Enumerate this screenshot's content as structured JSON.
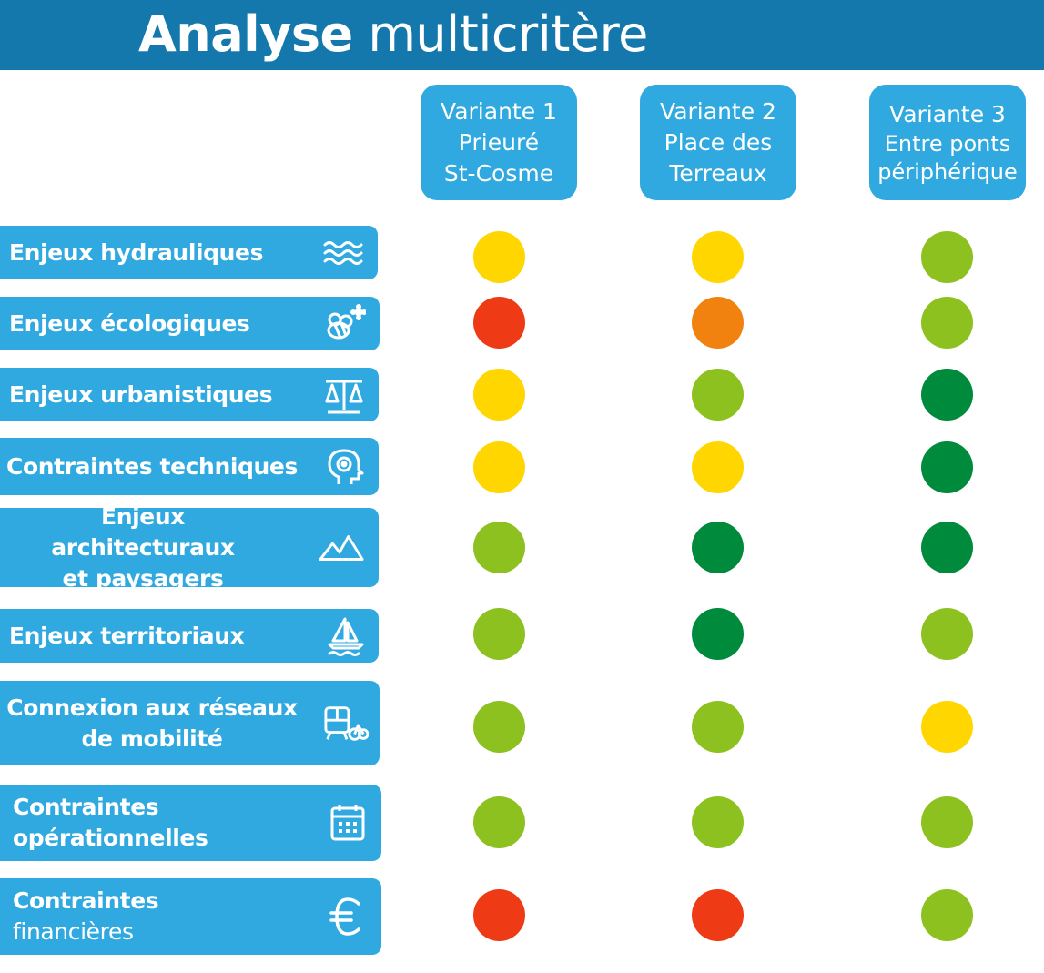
{
  "title": {
    "bold": "Analyse",
    "light": "multicritère"
  },
  "variants": [
    {
      "line1": "Variante 1",
      "line2": "Prieuré",
      "line3": "St-Cosme"
    },
    {
      "line1": "Variante 2",
      "line2": "Place des",
      "line3": "Terreaux"
    },
    {
      "line1": "Variante 3",
      "line2": "Entre ponts",
      "line3": "périphérique"
    }
  ],
  "criteria": [
    {
      "line1": "Enjeux hydrauliques",
      "line2": "",
      "icon": "waves-icon"
    },
    {
      "line1": "Enjeux écologiques",
      "line2": "",
      "icon": "bee-flower-icon"
    },
    {
      "line1": "Enjeux urbanistiques",
      "line2": "",
      "icon": "scales-icon"
    },
    {
      "line1": "Contraintes techniques",
      "line2": "",
      "icon": "head-gear-icon"
    },
    {
      "line1": "Enjeux architecturaux",
      "line2": "et paysagers",
      "icon": "mountains-icon"
    },
    {
      "line1": "Enjeux territoriaux",
      "line2": "",
      "icon": "sailboat-icon"
    },
    {
      "line1": "Connexion aux réseaux",
      "line2": "de mobilité",
      "icon": "tram-bike-icon"
    },
    {
      "line1": "Contraintes",
      "line2": "opérationnelles",
      "icon": "calendar-icon"
    },
    {
      "line1": "Contraintes",
      "line2": "financières",
      "icon": "euro-icon"
    }
  ],
  "palette": {
    "red": "#ee3a15",
    "orange": "#f28210",
    "yellow": "#ffd600",
    "lightgreen": "#8dc11f",
    "darkgreen": "#008a3c"
  },
  "ratings": [
    [
      "yellow",
      "yellow",
      "lightgreen"
    ],
    [
      "red",
      "orange",
      "lightgreen"
    ],
    [
      "yellow",
      "lightgreen",
      "darkgreen"
    ],
    [
      "yellow",
      "yellow",
      "darkgreen"
    ],
    [
      "lightgreen",
      "darkgreen",
      "darkgreen"
    ],
    [
      "lightgreen",
      "darkgreen",
      "lightgreen"
    ],
    [
      "lightgreen",
      "lightgreen",
      "yellow"
    ],
    [
      "lightgreen",
      "lightgreen",
      "lightgreen"
    ],
    [
      "red",
      "red",
      "lightgreen"
    ]
  ]
}
